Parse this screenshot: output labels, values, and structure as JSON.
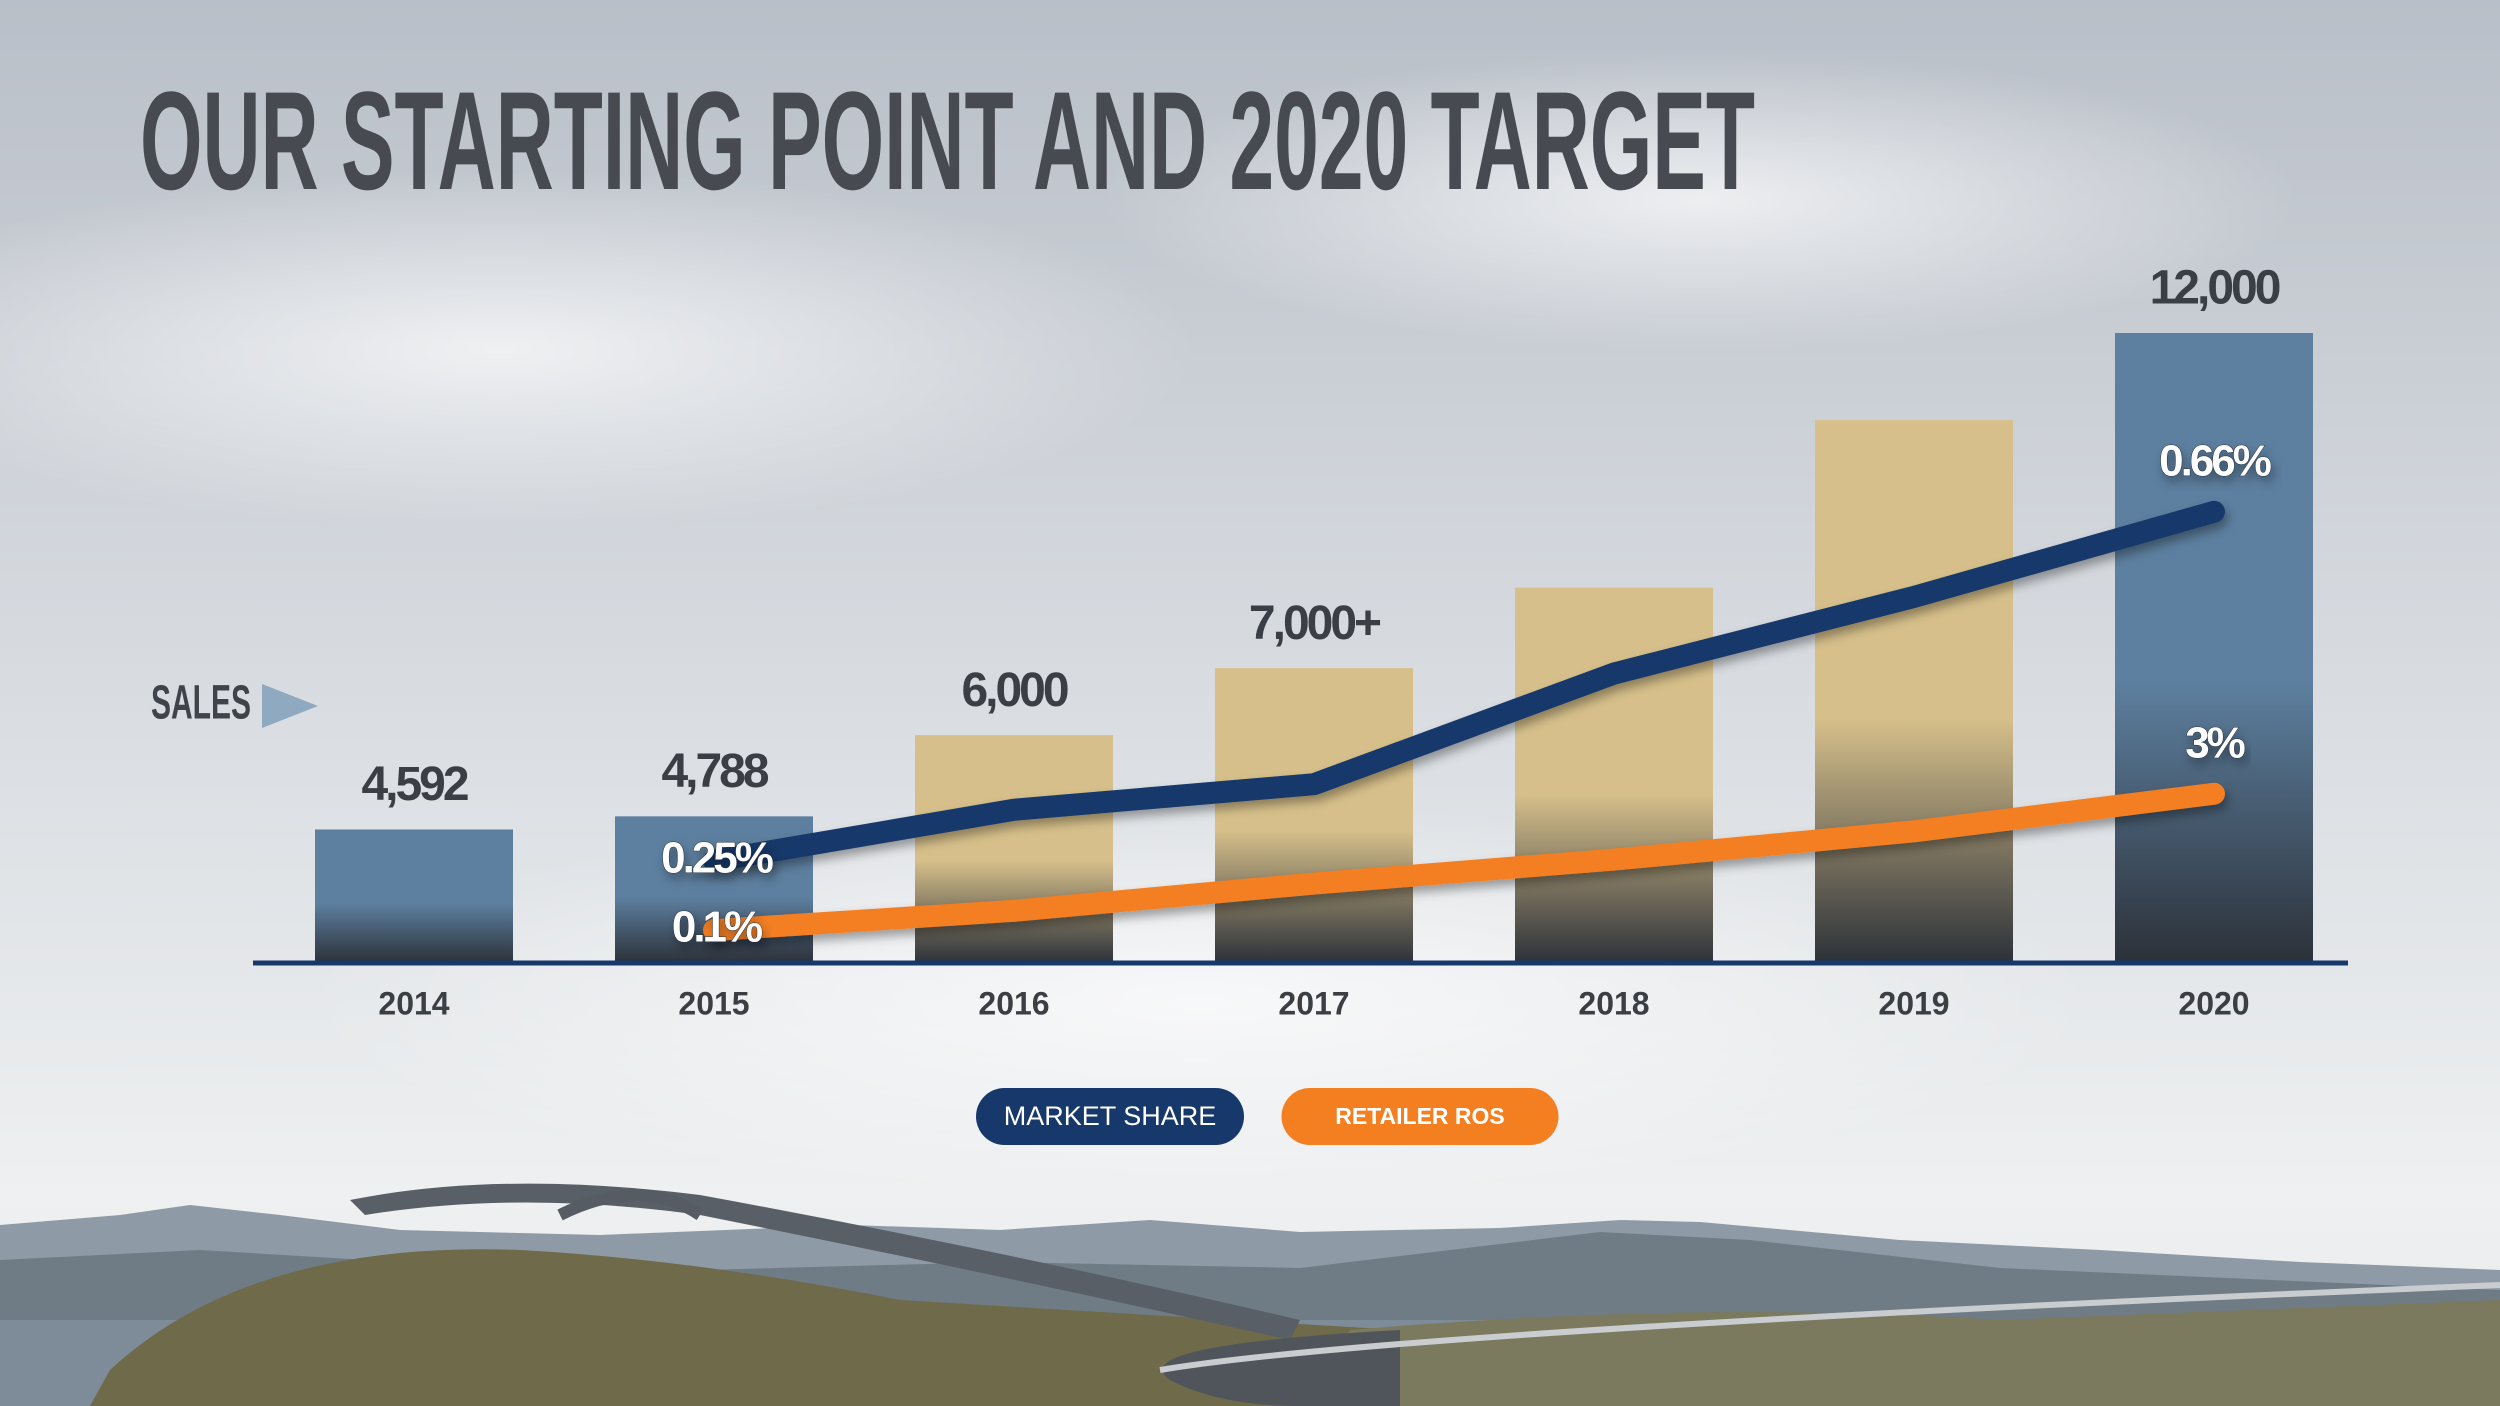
{
  "chart_data": {
    "type": "bar",
    "title": "OUR STARTING POINT AND 2020 TARGET",
    "annotation": "SALES",
    "categories": [
      "2014",
      "2015",
      "2016",
      "2017",
      "2018",
      "2019",
      "2020"
    ],
    "values": [
      4592,
      4788,
      6000,
      7000,
      8200,
      10700,
      12000
    ],
    "value_labels": [
      "4,592",
      "4,788",
      "6,000",
      "7,000+",
      null,
      null,
      "12,000"
    ],
    "colors": [
      "#5d80a0",
      "#5d80a0",
      "#d6bf8a",
      "#d6bf8a",
      "#d6bf8a",
      "#d6bf8a",
      "#5d80a0"
    ],
    "ylim": [
      2600,
      12000
    ],
    "y2lim": [
      0.13,
      0.87
    ],
    "y3lim": [
      -0.6,
      12.8
    ],
    "legend": "bottom",
    "series": [
      {
        "name": "MARKET SHARE",
        "type": "line",
        "axis": "y2",
        "color": "#17386a",
        "values": [
          null,
          0.25,
          0.31,
          0.34,
          0.47,
          0.56,
          0.66
        ],
        "value_labels": [
          null,
          "0.25%",
          null,
          null,
          null,
          null,
          "0.66%"
        ]
      },
      {
        "name": "RETAILER ROS",
        "type": "line",
        "axis": "y3",
        "color": "#f47f20",
        "values": [
          null,
          0.1,
          0.51,
          1.09,
          1.6,
          2.2,
          3
        ],
        "value_labels": [
          null,
          "0.1%",
          null,
          null,
          null,
          null,
          "3%"
        ]
      }
    ]
  }
}
